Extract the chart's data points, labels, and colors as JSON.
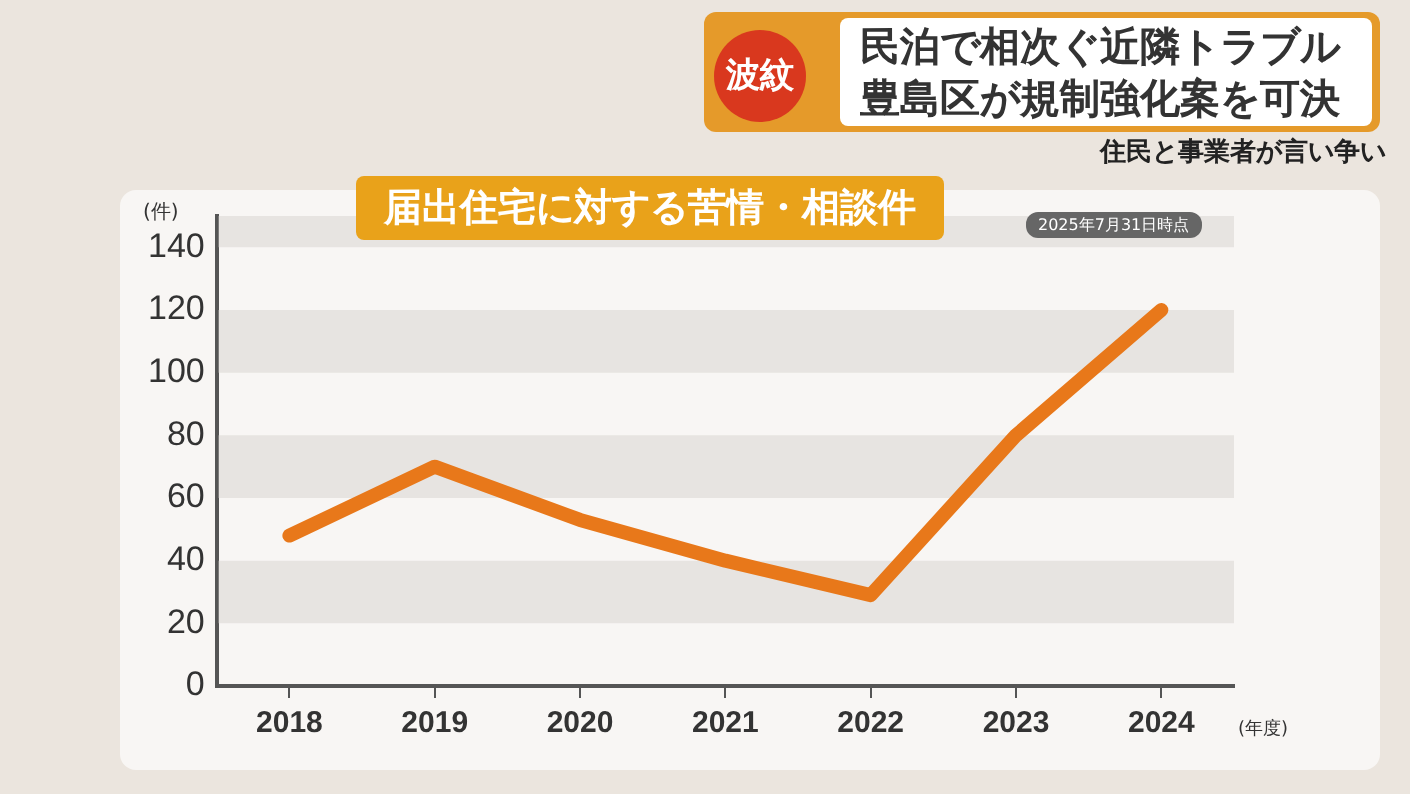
{
  "chart_data": {
    "type": "line",
    "title": "届出住宅に対する苦情・相談件",
    "annotations": [
      "波紋",
      "民泊で相次ぐ近隣トラブル",
      "豊島区が規制強化案を可決",
      "住民と事業者が言い争い",
      "2025年7月31日時点"
    ],
    "ylabel": "(件)",
    "xlabel": "(年度)",
    "categories": [
      "2018",
      "2019",
      "2020",
      "2021",
      "2022",
      "2023",
      "2024"
    ],
    "series": [
      {
        "color": "#e8781a",
        "values": [
          48,
          70,
          53,
          40,
          29,
          80,
          120
        ]
      }
    ],
    "ylim": [
      0,
      150
    ],
    "yticks": [
      0,
      20,
      40,
      60,
      80,
      100,
      120,
      140
    ],
    "bands": [
      {
        "axis": "y",
        "from": 20,
        "to": 40,
        "color": "#e7e4e1"
      },
      {
        "axis": "y",
        "from": 60,
        "to": 80,
        "color": "#e7e4e1"
      },
      {
        "axis": "y",
        "from": 100,
        "to": 120,
        "color": "#e7e4e1"
      },
      {
        "axis": "y",
        "from": 140,
        "to": 150,
        "color": "#e7e4e1"
      }
    ],
    "grid": false,
    "legend": false,
    "marker": "none",
    "line_style": "solid"
  }
}
